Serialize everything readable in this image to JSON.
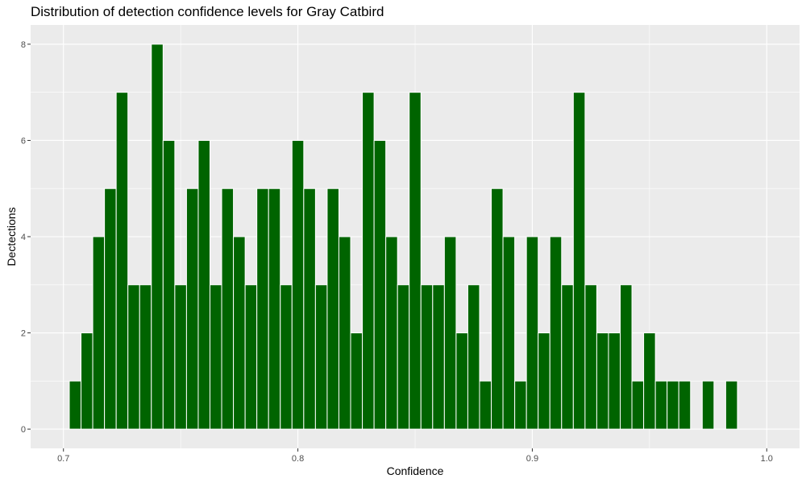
{
  "chart_data": {
    "type": "bar",
    "title": "Distribution of detection confidence levels for Gray Catbird",
    "xlabel": "Confidence",
    "ylabel": "Dectections",
    "xlim": [
      0.686,
      1.014
    ],
    "ylim": [
      -0.4,
      8.4
    ],
    "x_ticks": [
      0.7,
      0.8,
      0.9,
      1.0
    ],
    "x_tick_labels": [
      "0.7",
      "0.8",
      "0.9",
      "1.0"
    ],
    "y_ticks": [
      0,
      2,
      4,
      6,
      8
    ],
    "y_tick_labels": [
      "0",
      "2",
      "4",
      "6",
      "8"
    ],
    "bin_start": 0.7025,
    "bin_width": 0.005,
    "values": [
      1,
      2,
      4,
      5,
      7,
      3,
      3,
      8,
      6,
      3,
      5,
      6,
      3,
      5,
      4,
      3,
      5,
      5,
      3,
      6,
      5,
      3,
      5,
      4,
      2,
      7,
      6,
      4,
      3,
      7,
      3,
      3,
      4,
      2,
      3,
      1,
      5,
      4,
      1,
      4,
      2,
      4,
      3,
      7,
      3,
      2,
      2,
      3,
      1,
      2,
      1,
      1,
      1,
      0,
      1,
      0,
      1
    ],
    "bar_color": "#006400",
    "bar_outline": "#ffffff",
    "panel_background": "#ebebeb",
    "grid": true,
    "grid_color": "#ffffff",
    "legend": "none"
  }
}
